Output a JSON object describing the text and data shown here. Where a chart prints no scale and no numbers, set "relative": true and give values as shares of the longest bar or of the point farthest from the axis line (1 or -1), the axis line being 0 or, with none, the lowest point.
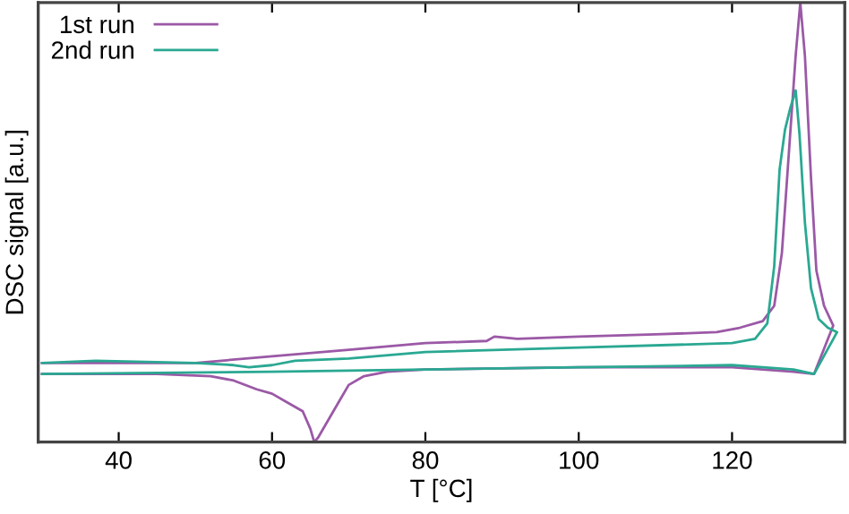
{
  "chart_data": {
    "type": "line",
    "xlabel": "T [°C]",
    "ylabel": "DSC signal [a.u.]",
    "relative": true,
    "xlim": [
      29.5,
      134.7
    ],
    "xticks": [
      40,
      60,
      80,
      100,
      120
    ],
    "legend": "top left",
    "grid": false,
    "marker": "none",
    "line_style": "solid",
    "series": [
      {
        "name": "1st run",
        "color": "#9b59a6",
        "x": [
          30,
          40,
          50,
          60,
          70,
          80,
          88,
          89,
          92,
          100,
          110,
          118,
          121,
          124,
          125.5,
          126.5,
          127.5,
          128.3,
          128.9,
          129.5,
          130.3,
          131,
          132,
          133.2,
          130.7,
          128,
          124,
          120,
          100,
          80,
          75,
          72,
          70,
          69,
          68,
          67,
          66,
          65.5,
          65,
          64,
          62,
          60,
          58,
          55,
          52,
          45,
          30
        ],
        "values": [
          0.18,
          0.18,
          0.18,
          0.195,
          0.21,
          0.225,
          0.23,
          0.24,
          0.235,
          0.24,
          0.245,
          0.25,
          0.26,
          0.275,
          0.31,
          0.43,
          0.68,
          0.88,
          1,
          0.88,
          0.6,
          0.39,
          0.31,
          0.265,
          0.155,
          0.16,
          0.165,
          0.17,
          0.17,
          0.165,
          0.16,
          0.15,
          0.13,
          0.1,
          0.07,
          0.04,
          0.01,
          0,
          0.03,
          0.07,
          0.09,
          0.11,
          0.12,
          0.14,
          0.15,
          0.155,
          0.155
        ]
      },
      {
        "name": "2nd run",
        "color": "#2aa892",
        "x": [
          30,
          37,
          50,
          55,
          57,
          60,
          63,
          70,
          80,
          100,
          120,
          123,
          124.6,
          125.5,
          126.2,
          126.9,
          127.6,
          128.3,
          128.8,
          129.5,
          130.3,
          131.3,
          132.5,
          133.7,
          130.7,
          128,
          124,
          120,
          100,
          80,
          60,
          30
        ],
        "values": [
          0.18,
          0.185,
          0.18,
          0.175,
          0.17,
          0.175,
          0.185,
          0.19,
          0.205,
          0.215,
          0.225,
          0.235,
          0.27,
          0.4,
          0.62,
          0.71,
          0.76,
          0.8,
          0.7,
          0.5,
          0.35,
          0.28,
          0.26,
          0.25,
          0.155,
          0.165,
          0.17,
          0.175,
          0.17,
          0.165,
          0.16,
          0.155
        ]
      }
    ]
  }
}
